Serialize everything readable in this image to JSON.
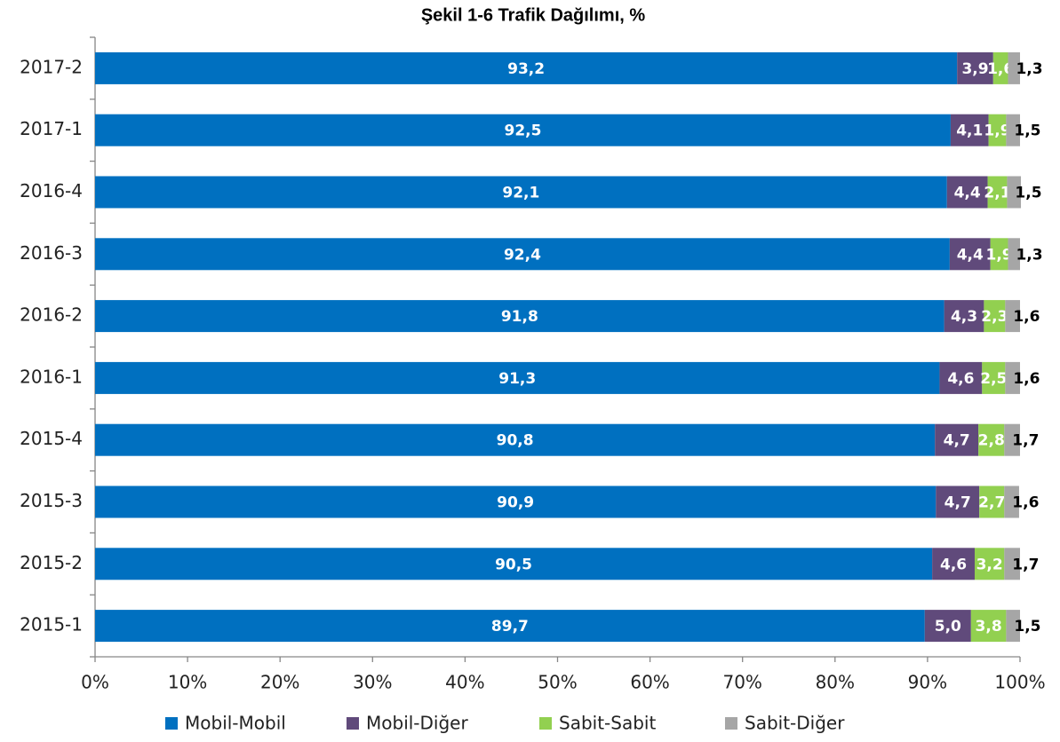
{
  "chart_data": {
    "type": "stacked-barh",
    "title": "Şekil 1-6 Trafik Dağılımı, %",
    "categories": [
      "2017-2",
      "2017-1",
      "2016-4",
      "2016-3",
      "2016-2",
      "2016-1",
      "2015-4",
      "2015-3",
      "2015-2",
      "2015-1"
    ],
    "series": [
      {
        "name": "Mobil-Mobil",
        "color": "#0070c0",
        "values": [
          93.2,
          92.5,
          92.1,
          92.4,
          91.8,
          91.3,
          90.8,
          90.9,
          90.5,
          89.7
        ],
        "value_labels": [
          "93,2",
          "92,5",
          "92,1",
          "92,4",
          "91,8",
          "91,3",
          "90,8",
          "90,9",
          "90,5",
          "89,7"
        ]
      },
      {
        "name": "Mobil-Diğer",
        "color": "#604a7b",
        "values": [
          3.9,
          4.1,
          4.4,
          4.4,
          4.3,
          4.6,
          4.7,
          4.7,
          4.6,
          5.0
        ],
        "value_labels": [
          "3,9",
          "4,1",
          "4,4",
          "4,4",
          "4,3",
          "4,6",
          "4,7",
          "4,7",
          "4,6",
          "5,0"
        ]
      },
      {
        "name": "Sabit-Sabit",
        "color": "#92d050",
        "values": [
          1.6,
          1.9,
          2.1,
          1.9,
          2.3,
          2.5,
          2.8,
          2.7,
          3.2,
          3.8
        ],
        "value_labels": [
          "1,6",
          "1,9",
          "2,1",
          "1,9",
          "2,3",
          "2,5",
          "2,8",
          "2,7",
          "3,2",
          "3,8"
        ]
      },
      {
        "name": "Sabit-Diğer",
        "color": "#a6a6a6",
        "values": [
          1.3,
          1.5,
          1.5,
          1.3,
          1.6,
          1.6,
          1.7,
          1.6,
          1.7,
          1.5
        ],
        "value_labels": [
          "1,3",
          "1,5",
          "1,5",
          "1,3",
          "1,6",
          "1,6",
          "1,7",
          "1,6",
          "1,7",
          "1,5"
        ]
      }
    ],
    "xlim": [
      0,
      100
    ],
    "xticks": [
      {
        "value": 0,
        "label": "0%"
      },
      {
        "value": 10,
        "label": "10%"
      },
      {
        "value": 20,
        "label": "20%"
      },
      {
        "value": 30,
        "label": "30%"
      },
      {
        "value": 40,
        "label": "40%"
      },
      {
        "value": 50,
        "label": "50%"
      },
      {
        "value": 60,
        "label": "60%"
      },
      {
        "value": 70,
        "label": "70%"
      },
      {
        "value": 80,
        "label": "80%"
      },
      {
        "value": 90,
        "label": "90%"
      },
      {
        "value": 100,
        "label": "100%"
      }
    ],
    "legend": "bottom"
  }
}
